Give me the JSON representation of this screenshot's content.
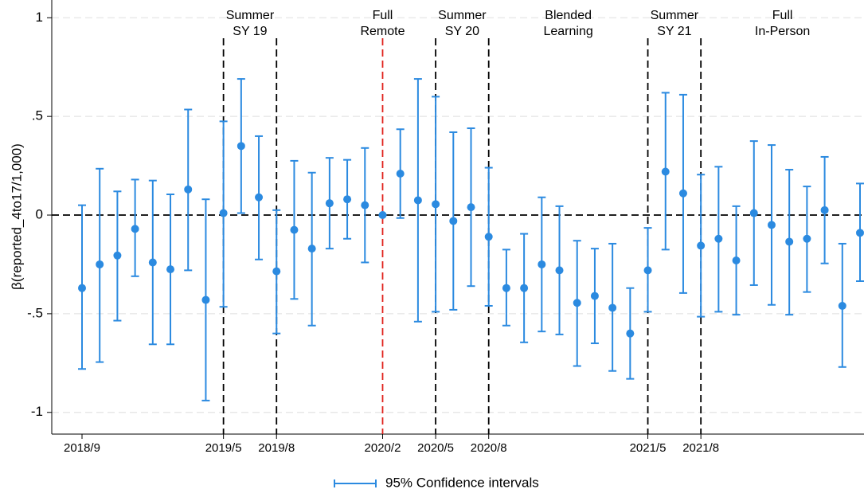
{
  "chart_data": {
    "type": "errorbar",
    "y_label": "β(reported_4to17/1,000)",
    "categories": [
      "2018/9",
      null,
      null,
      null,
      null,
      null,
      null,
      null,
      "2019/5",
      null,
      null,
      "2019/8",
      null,
      null,
      null,
      null,
      null,
      "2020/2",
      null,
      null,
      "2020/5",
      null,
      null,
      "2020/8",
      null,
      null,
      null,
      null,
      null,
      null,
      null,
      null,
      "2021/5",
      null,
      null,
      "2021/8",
      null,
      null,
      null,
      null,
      null,
      null,
      null,
      null,
      null
    ],
    "series": [
      {
        "name": "95% Confidence intervals",
        "color": "#2b8ae0",
        "values": [
          -0.37,
          -0.25,
          -0.205,
          -0.07,
          -0.24,
          -0.275,
          0.13,
          -0.43,
          0.01,
          0.35,
          0.09,
          -0.285,
          -0.075,
          -0.17,
          0.06,
          0.08,
          0.05,
          0,
          0.21,
          0.075,
          0.055,
          -0.03,
          0.04,
          -0.11,
          -0.37,
          -0.37,
          -0.25,
          -0.28,
          -0.445,
          -0.41,
          -0.47,
          -0.6,
          -0.28,
          0.22,
          0.11,
          -0.155,
          -0.12,
          -0.23,
          0.01,
          -0.05,
          -0.135,
          -0.12,
          0.025,
          -0.46,
          -0.09
        ],
        "upper": [
          0.05,
          0.235,
          0.12,
          0.18,
          0.175,
          0.105,
          0.535,
          0.08,
          0.475,
          0.69,
          0.4,
          0.025,
          0.275,
          0.215,
          0.29,
          0.28,
          0.34,
          0,
          0.435,
          0.69,
          0.6,
          0.42,
          0.44,
          0.24,
          -0.175,
          -0.095,
          0.09,
          0.045,
          -0.13,
          -0.17,
          -0.145,
          -0.37,
          -0.065,
          0.62,
          0.61,
          0.205,
          0.245,
          0.045,
          0.375,
          0.355,
          0.23,
          0.145,
          0.295,
          -0.145,
          0.16
        ],
        "lower": [
          -0.78,
          -0.745,
          -0.535,
          -0.31,
          -0.655,
          -0.655,
          -0.28,
          -0.94,
          -0.465,
          0.01,
          -0.225,
          -0.6,
          -0.425,
          -0.56,
          -0.17,
          -0.12,
          -0.24,
          0,
          -0.015,
          -0.54,
          -0.49,
          -0.48,
          -0.36,
          -0.46,
          -0.56,
          -0.645,
          -0.59,
          -0.605,
          -0.765,
          -0.65,
          -0.79,
          -0.83,
          -0.49,
          -0.175,
          -0.395,
          -0.515,
          -0.49,
          -0.505,
          -0.355,
          -0.455,
          -0.505,
          -0.39,
          -0.245,
          -0.77,
          -0.335
        ]
      }
    ],
    "ylim": [
      -1.11,
      1.09
    ],
    "yticks": [
      -1,
      {
        "value": -0.5,
        "label": "-.5"
      },
      0,
      {
        "value": 0.5,
        "label": ".5"
      },
      1
    ],
    "grid": true,
    "vlines": [
      {
        "at": "2019/5",
        "color": "#000"
      },
      {
        "at": "2019/8",
        "color": "#000"
      },
      {
        "at": "2020/2",
        "color": "#e0201b"
      },
      {
        "at": "2020/5",
        "color": "#000"
      },
      {
        "at": "2020/8",
        "color": "#000"
      },
      {
        "at": "2021/5",
        "color": "#000"
      },
      {
        "at": "2021/8",
        "color": "#000"
      }
    ],
    "annotations": [
      {
        "text": [
          "Summer",
          "SY 19"
        ],
        "from": "2019/5",
        "to": "2019/8"
      },
      {
        "text": [
          "Full",
          "Remote"
        ],
        "from": "2020/2",
        "to": "2020/2"
      },
      {
        "text": [
          "Summer",
          "SY 20"
        ],
        "from": "2020/5",
        "to": "2020/8"
      },
      {
        "text": [
          "Blended",
          "Learning"
        ],
        "from": "2020/8",
        "to": "2021/5"
      },
      {
        "text": [
          "Summer",
          "SY 21"
        ],
        "from": "2021/5",
        "to": "2021/8"
      },
      {
        "text": [
          "Full",
          "In-Person"
        ],
        "from": "2021/8",
        "to": null
      }
    ],
    "legend": "bottom"
  }
}
